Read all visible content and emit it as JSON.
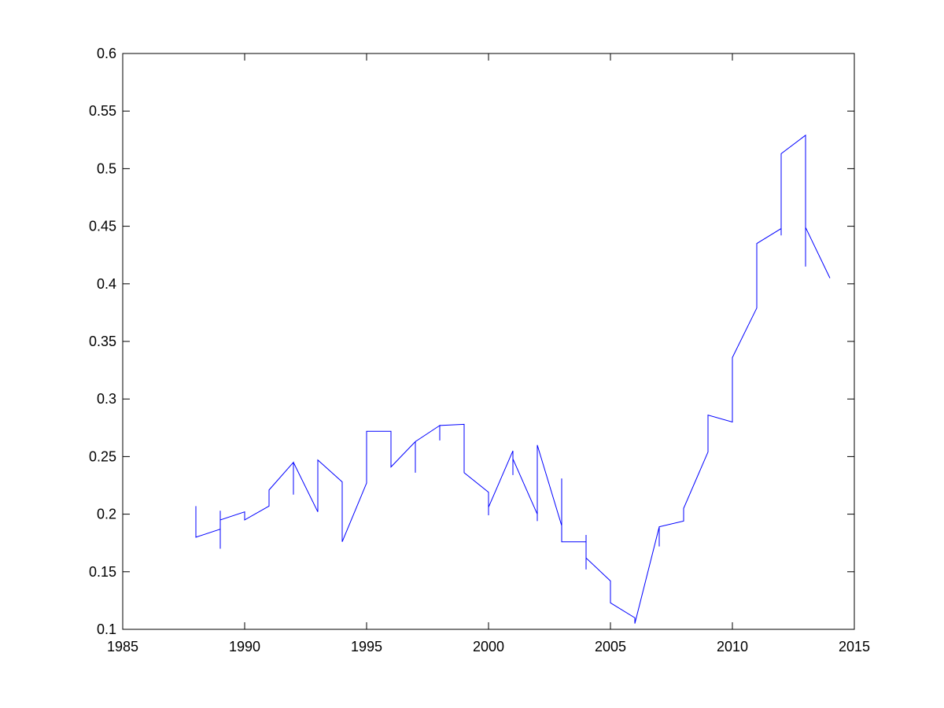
{
  "chart_data": {
    "type": "line",
    "title": "",
    "xlabel": "",
    "ylabel": "",
    "xlim": [
      1985,
      2015
    ],
    "ylim": [
      0.1,
      0.6
    ],
    "xticks": [
      1985,
      1990,
      1995,
      2000,
      2005,
      2010,
      2015
    ],
    "yticks": [
      0.1,
      0.15,
      0.2,
      0.25,
      0.3,
      0.35,
      0.4,
      0.45,
      0.5,
      0.55,
      0.6
    ],
    "xtick_labels": [
      "1985",
      "1990",
      "1995",
      "2000",
      "2005",
      "2010",
      "2015"
    ],
    "ytick_labels": [
      "0.1",
      "0.15",
      "0.2",
      "0.25",
      "0.3",
      "0.35",
      "0.4",
      "0.45",
      "0.5",
      "0.55",
      "0.6"
    ],
    "grid": false,
    "legend": "none",
    "line_color": "#0000ff",
    "axes_color": "#000000",
    "background": "#ffffff",
    "series": [
      {
        "color": "#0000ff",
        "points": [
          [
            1988,
            0.207
          ],
          [
            1988,
            0.18
          ],
          [
            1989,
            0.187
          ],
          [
            1989,
            0.17
          ],
          [
            1989,
            0.203
          ],
          [
            1989,
            0.195
          ],
          [
            1990,
            0.202
          ],
          [
            1990,
            0.195
          ],
          [
            1991,
            0.207
          ],
          [
            1991,
            0.221
          ],
          [
            1992,
            0.245
          ],
          [
            1992,
            0.217
          ],
          [
            1992,
            0.245
          ],
          [
            1993,
            0.202
          ],
          [
            1993,
            0.247
          ],
          [
            1994,
            0.228
          ],
          [
            1994,
            0.176
          ],
          [
            1995,
            0.227
          ],
          [
            1995,
            0.272
          ],
          [
            1996,
            0.272
          ],
          [
            1996,
            0.241
          ],
          [
            1997,
            0.263
          ],
          [
            1997,
            0.236
          ],
          [
            1997,
            0.263
          ],
          [
            1998,
            0.277
          ],
          [
            1998,
            0.264
          ],
          [
            1998,
            0.277
          ],
          [
            1999,
            0.278
          ],
          [
            1999,
            0.236
          ],
          [
            2000,
            0.219
          ],
          [
            2000,
            0.199
          ],
          [
            2000,
            0.206
          ],
          [
            2001,
            0.255
          ],
          [
            2001,
            0.234
          ],
          [
            2001,
            0.248
          ],
          [
            2002,
            0.2
          ],
          [
            2002,
            0.194
          ],
          [
            2002,
            0.26
          ],
          [
            2003,
            0.19
          ],
          [
            2003,
            0.231
          ],
          [
            2003,
            0.176
          ],
          [
            2004,
            0.176
          ],
          [
            2004,
            0.182
          ],
          [
            2004,
            0.152
          ],
          [
            2004,
            0.162
          ],
          [
            2005,
            0.142
          ],
          [
            2005,
            0.123
          ],
          [
            2006,
            0.11
          ],
          [
            2006,
            0.105
          ],
          [
            2007,
            0.189
          ],
          [
            2007,
            0.172
          ],
          [
            2007,
            0.189
          ],
          [
            2008,
            0.194
          ],
          [
            2008,
            0.205
          ],
          [
            2009,
            0.254
          ],
          [
            2009,
            0.286
          ],
          [
            2010,
            0.28
          ],
          [
            2010,
            0.336
          ],
          [
            2011,
            0.379
          ],
          [
            2011,
            0.435
          ],
          [
            2012,
            0.448
          ],
          [
            2012,
            0.442
          ],
          [
            2012,
            0.513
          ],
          [
            2013,
            0.529
          ],
          [
            2013,
            0.415
          ],
          [
            2013,
            0.449
          ],
          [
            2014,
            0.405
          ]
        ]
      }
    ]
  }
}
